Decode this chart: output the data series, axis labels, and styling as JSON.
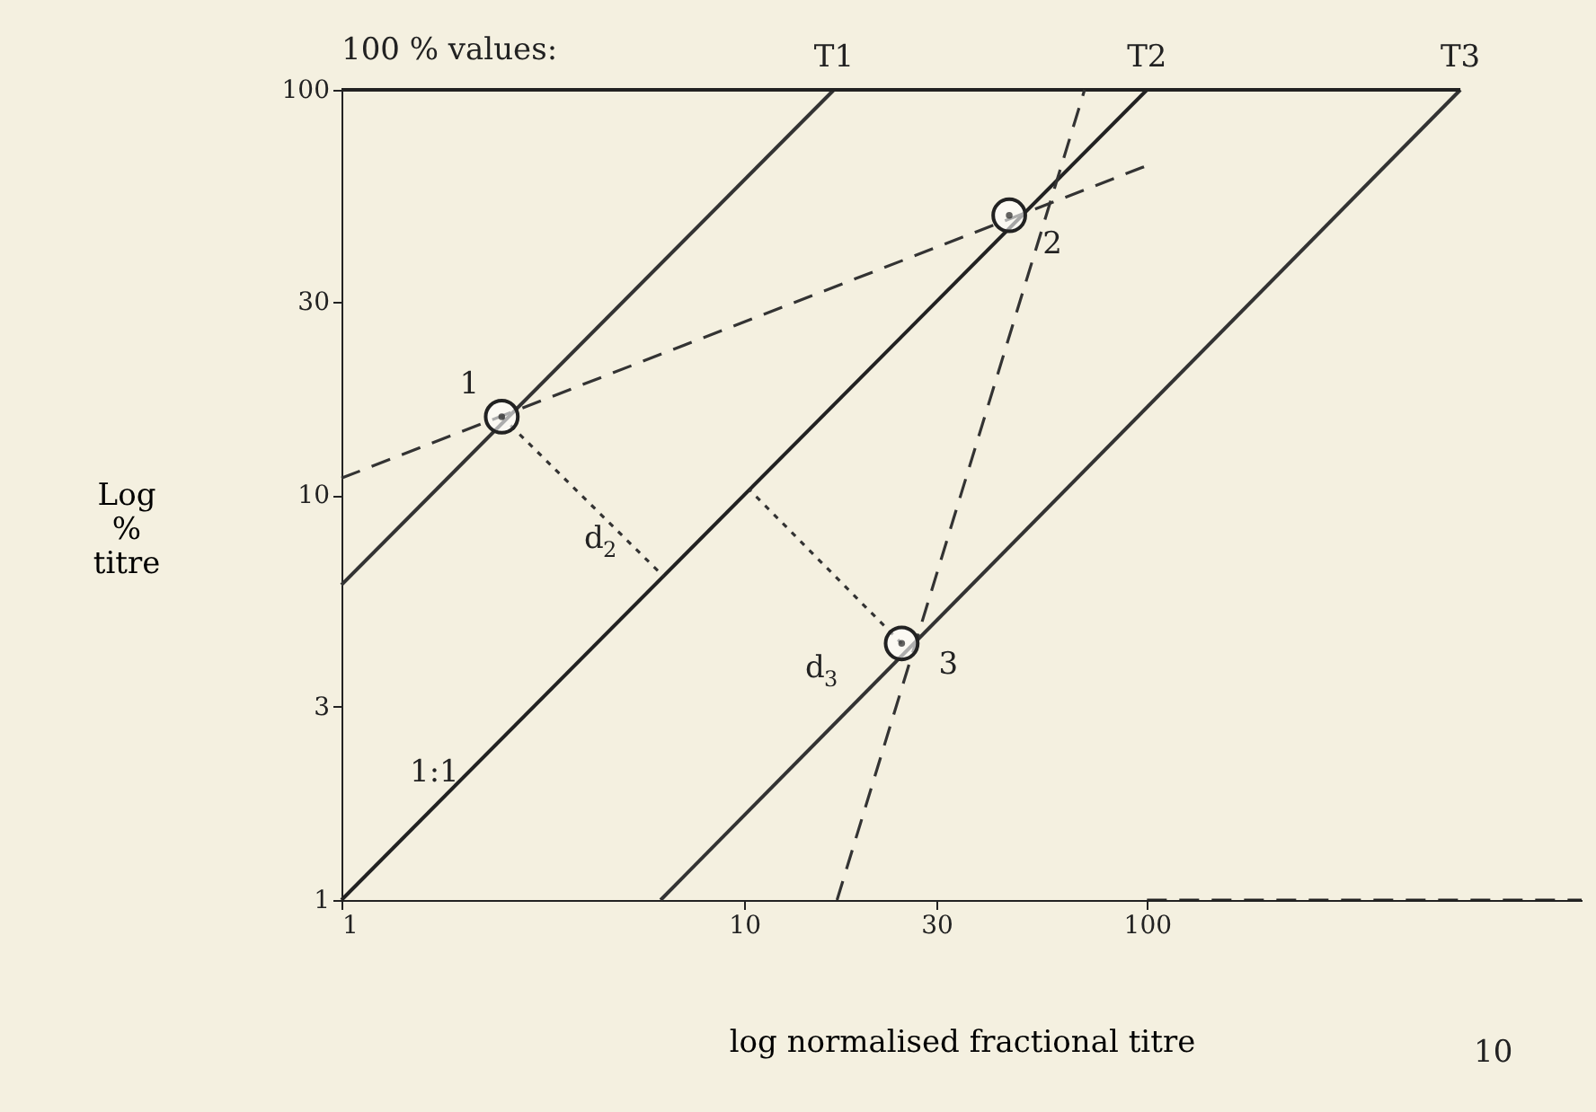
{
  "chart_data": {
    "type": "line",
    "xlabel": "log normalised fractional titre",
    "ylabel": "Log % titre",
    "log": "xy",
    "xlim": [
      1,
      1200
    ],
    "ylim": [
      1,
      100
    ],
    "xticks": [
      1,
      10,
      30,
      100
    ],
    "yticks": [
      1,
      3,
      10,
      30,
      100
    ],
    "grid": false,
    "series": [
      {
        "color": "#222222",
        "line_style": "solid",
        "x": [
          1,
          100
        ],
        "values": [
          1,
          100
        ]
      },
      {
        "color": "#333333",
        "line_style": "solid",
        "x": [
          1,
          16.7
        ],
        "values": [
          6,
          100
        ]
      },
      {
        "color": "#333333",
        "line_style": "solid",
        "x": [
          6.2,
          600
        ],
        "values": [
          1,
          100
        ]
      },
      {
        "color": "#222222",
        "line_style": "solid",
        "x": [
          1,
          600
        ],
        "values": [
          100,
          100
        ]
      },
      {
        "color": "#333333",
        "line_style": "dashed",
        "x": [
          1,
          100
        ],
        "values": [
          11,
          65
        ]
      },
      {
        "color": "#333333",
        "line_style": "dashed",
        "x": [
          17,
          70
        ],
        "values": [
          1,
          100
        ]
      },
      {
        "color": "#333333",
        "line_style": "dotted",
        "x": [
          2.5,
          6.3
        ],
        "values": [
          15.6,
          6.3
        ]
      },
      {
        "color": "#333333",
        "line_style": "dotted",
        "x": [
          24.6,
          10.3
        ],
        "values": [
          4.3,
          10.3
        ]
      },
      {
        "color": "#222222",
        "line_style": "dashed",
        "x": [
          100,
          1200
        ],
        "values": [
          1,
          1
        ]
      },
      {
        "type": "scatter",
        "color": "#222222",
        "marker": "circle",
        "x": [
          2.5,
          45.5,
          24.6
        ],
        "values": [
          15.6,
          49,
          4.3
        ]
      }
    ],
    "annotations": [
      "100 % values:",
      "10",
      "1:1",
      "d$_{2}$",
      "d$_{3}$",
      {
        "text": "T1",
        "x": 16.7,
        "y": 100
      },
      {
        "text": "T2",
        "x": 100,
        "y": 100
      },
      {
        "text": "T3",
        "x": 600,
        "y": 100
      },
      {
        "text": "1",
        "x": 2.5,
        "y": 15.6
      },
      {
        "text": "2",
        "x": 45.5,
        "y": 49
      },
      {
        "text": "3",
        "x": 24.6,
        "y": 4.3
      }
    ]
  }
}
